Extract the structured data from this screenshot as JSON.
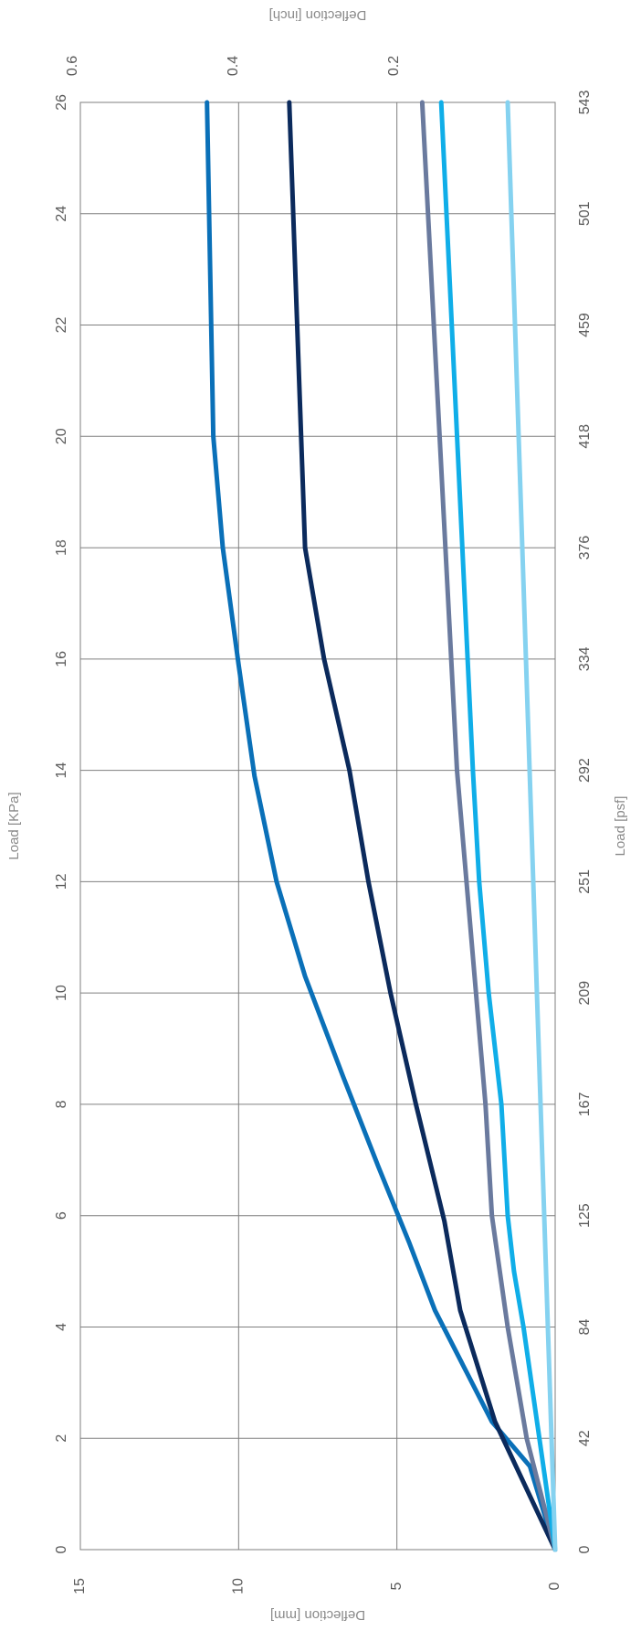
{
  "chart_data": {
    "type": "line",
    "orientation": "rotated-90",
    "x_axis": {
      "label": "Load [KPa]",
      "ticks": [
        "0",
        "2",
        "4",
        "6",
        "8",
        "10",
        "12",
        "14",
        "16",
        "18",
        "20",
        "22",
        "24",
        "26"
      ],
      "range": [
        0,
        26
      ]
    },
    "x2_axis": {
      "label": "Load [psf]",
      "ticks": [
        "0",
        "42",
        "84",
        "125",
        "167",
        "209",
        "251",
        "292",
        "334",
        "376",
        "418",
        "459",
        "501",
        "543"
      ]
    },
    "y_axis": {
      "label": "Deflection [mm]",
      "ticks": [
        "0",
        "5",
        "10",
        "15"
      ],
      "range": [
        0,
        15
      ]
    },
    "y2_axis": {
      "label": "Deflection [inch]",
      "ticks": [
        "0.2",
        "0.4",
        "0.6"
      ]
    },
    "grid": true,
    "legend": "none",
    "series": [
      {
        "color": "#0a70b8",
        "x": [
          0,
          1.5,
          2.3,
          3.3,
          4.3,
          5.5,
          6.9,
          8.5,
          10.3,
          12,
          13.9,
          15.9,
          18,
          20,
          26
        ],
        "y": [
          0,
          0.8,
          2.0,
          2.9,
          3.8,
          4.6,
          5.6,
          6.7,
          7.9,
          8.8,
          9.5,
          10.0,
          10.5,
          10.8,
          11.0
        ]
      },
      {
        "color": "#0b2a5c",
        "x": [
          0,
          2.3,
          4.3,
          5.9,
          8,
          10,
          12,
          14,
          16,
          18,
          26
        ],
        "y": [
          0,
          1.9,
          3.0,
          3.5,
          4.4,
          5.2,
          5.9,
          6.5,
          7.3,
          7.9,
          8.4
        ]
      },
      {
        "color": "#6a7a9e",
        "x": [
          0,
          2,
          4,
          6,
          8,
          10,
          12,
          14,
          26
        ],
        "y": [
          0,
          0.9,
          1.5,
          2.0,
          2.2,
          2.5,
          2.8,
          3.1,
          4.2
        ]
      },
      {
        "color": "#10aee8",
        "x": [
          0,
          2,
          4,
          5,
          6,
          8,
          10,
          12,
          14,
          26
        ],
        "y": [
          0,
          0.5,
          1.0,
          1.3,
          1.5,
          1.7,
          2.1,
          2.4,
          2.6,
          3.6
        ]
      },
      {
        "color": "#85d2f0",
        "x": [
          0,
          26
        ],
        "y": [
          0,
          1.5
        ]
      }
    ]
  }
}
